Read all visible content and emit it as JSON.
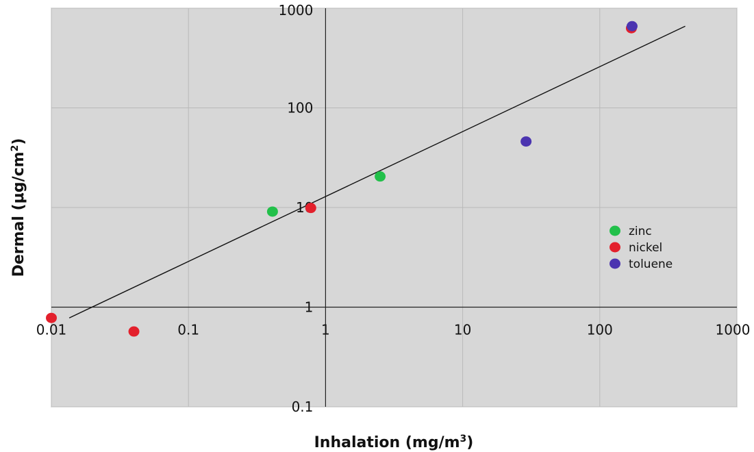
{
  "chart_data": {
    "type": "scatter",
    "title": "",
    "xlabel": "Inhalation (mg/m",
    "xlabel_sup": "3",
    "xlabel_end": ")",
    "ylabel": "Dermal (μg/cm",
    "ylabel_sup": "2",
    "ylabel_end": ")",
    "x_scale": "log",
    "y_scale": "log",
    "xlim": [
      0.01,
      1000
    ],
    "ylim": [
      0.1,
      1000
    ],
    "x_ticks": [
      {
        "value": 0.01,
        "label": "0.01"
      },
      {
        "value": 0.1,
        "label": "0.1"
      },
      {
        "value": 1,
        "label": "1"
      },
      {
        "value": 10,
        "label": "10"
      },
      {
        "value": 100,
        "label": "100"
      },
      {
        "value": 1000,
        "label": "1000"
      }
    ],
    "y_ticks": [
      {
        "value": 0.1,
        "label": "0.1"
      },
      {
        "value": 1,
        "label": "1"
      },
      {
        "value": 10,
        "label": "10"
      },
      {
        "value": 100,
        "label": "100"
      },
      {
        "value": 1000,
        "label": "1000"
      }
    ],
    "x_axis_crosses_y_at": 1,
    "y_axis_crosses_x_at": 1,
    "grid": true,
    "legend_position": "right",
    "series": [
      {
        "name": "zinc",
        "color": "#22c04a",
        "points": [
          {
            "x": 0.41,
            "y": 9.1
          },
          {
            "x": 2.5,
            "y": 20.5
          }
        ]
      },
      {
        "name": "nickel",
        "color": "#e3202c",
        "points": [
          {
            "x": 0.01,
            "y": 0.78
          },
          {
            "x": 0.04,
            "y": 0.57
          },
          {
            "x": 0.78,
            "y": 9.9
          },
          {
            "x": 170,
            "y": 630
          }
        ]
      },
      {
        "name": "toluene",
        "color": "#4b34b0",
        "points": [
          {
            "x": 29,
            "y": 46
          },
          {
            "x": 172,
            "y": 660
          }
        ]
      }
    ],
    "trendline": {
      "color": "#111111",
      "points": [
        {
          "x": 0.0135,
          "y": 0.78
        },
        {
          "x": 420,
          "y": 660
        }
      ]
    },
    "colors": {
      "plot_background": "#d7d7d7",
      "grid": "#b9b9b9",
      "axis": "#222222"
    }
  }
}
